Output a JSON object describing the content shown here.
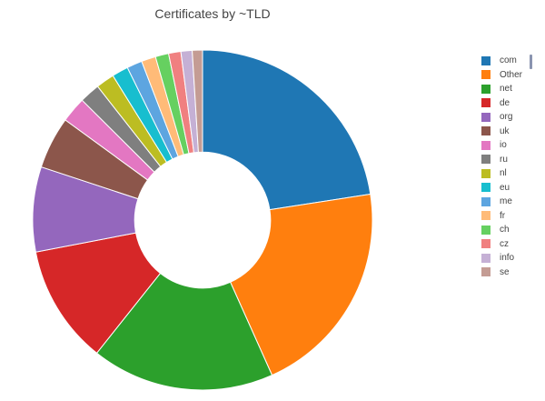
{
  "chart_data": {
    "type": "pie",
    "hole": 0.4,
    "title": "Certificates by ~TLD",
    "direction": "clockwise",
    "start": "top",
    "legend_position": "right",
    "slices": [
      {
        "label": "com",
        "value": 23.2,
        "color": "#1f77b4"
      },
      {
        "label": "Other",
        "value": 21.3,
        "color": "#ff7f0e"
      },
      {
        "label": "net",
        "value": 17.9,
        "color": "#2ca02c"
      },
      {
        "label": "de",
        "value": 11.6,
        "color": "#d62728"
      },
      {
        "label": "org",
        "value": 8.3,
        "color": "#9467bd"
      },
      {
        "label": "uk",
        "value": 5.1,
        "color": "#8c564b"
      },
      {
        "label": "io",
        "value": 2.5,
        "color": "#e377c2"
      },
      {
        "label": "ru",
        "value": 2.0,
        "color": "#7f7f7f"
      },
      {
        "label": "nl",
        "value": 1.8,
        "color": "#bcbd22"
      },
      {
        "label": "eu",
        "value": 1.6,
        "color": "#17becf"
      },
      {
        "label": "me",
        "value": 1.5,
        "color": "#5da5e0"
      },
      {
        "label": "fr",
        "value": 1.4,
        "color": "#ffbb78"
      },
      {
        "label": "ch",
        "value": 1.3,
        "color": "#66d060"
      },
      {
        "label": "cz",
        "value": 1.2,
        "color": "#f08080"
      },
      {
        "label": "info",
        "value": 1.1,
        "color": "#c5b0d5"
      },
      {
        "label": "se",
        "value": 1.0,
        "color": "#c49c94"
      }
    ]
  }
}
